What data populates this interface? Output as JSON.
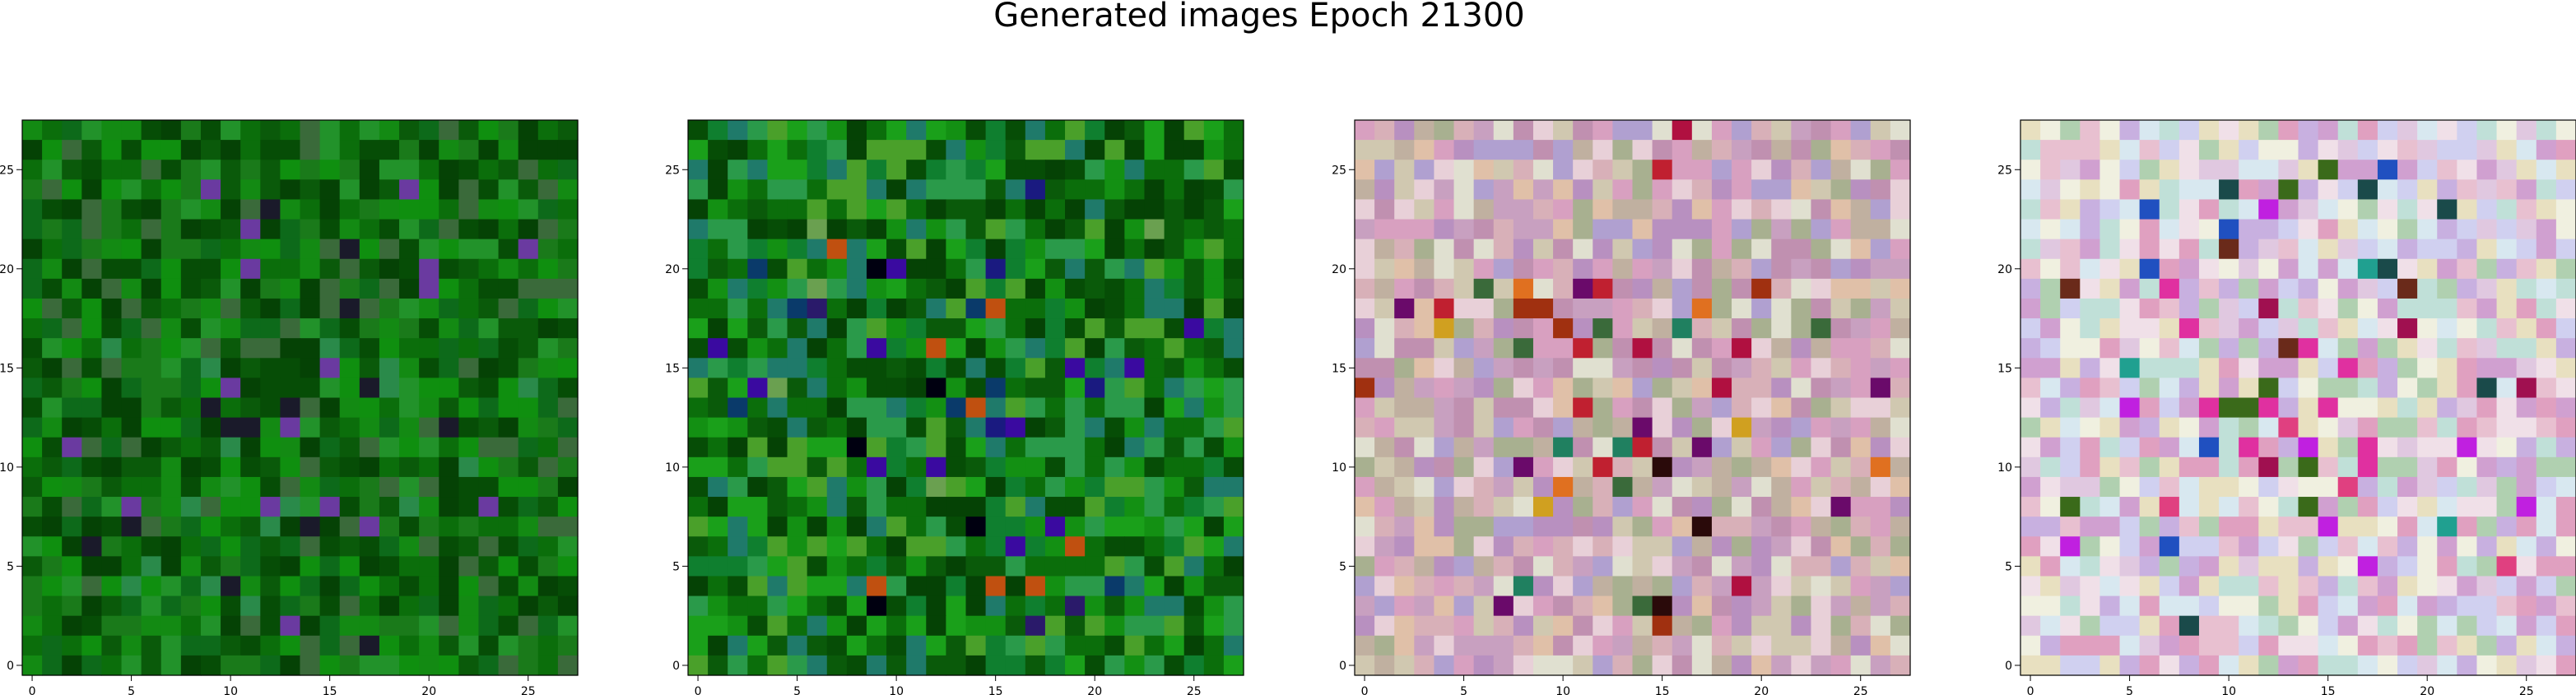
{
  "title": "Generated images Epoch 21300",
  "chart_data": [
    {
      "type": "heatmap",
      "grid_size": 28,
      "xlim": [
        -0.5,
        27.5
      ],
      "ylim": [
        27.5,
        -0.5
      ],
      "xticks": [
        0,
        5,
        10,
        15,
        20,
        25
      ],
      "yticks": [
        0,
        5,
        10,
        15,
        20,
        25
      ],
      "seed": 11,
      "palette": [
        "#0b6e0b",
        "#0a5a0a",
        "#138a13",
        "#064d06",
        "#1a7a1a",
        "#0f8f0f",
        "#054205",
        "#22922a",
        "#0d6a1a",
        "#3a6a3a"
      ],
      "accents": [
        "#6a3aa0",
        "#1a1a2a",
        "#2a8a4a"
      ]
    },
    {
      "type": "heatmap",
      "grid_size": 28,
      "xlim": [
        -0.5,
        27.5
      ],
      "ylim": [
        27.5,
        -0.5
      ],
      "xticks": [
        0,
        5,
        10,
        15,
        20,
        25
      ],
      "yticks": [
        0,
        5,
        10,
        15,
        20,
        25
      ],
      "seed": 23,
      "palette": [
        "#0b6e0b",
        "#0a5a0a",
        "#139013",
        "#064d06",
        "#1aa01a",
        "#0f7f2f",
        "#054205",
        "#2a9a4a",
        "#1f7a6a",
        "#4aa02a"
      ],
      "accents": [
        "#000010",
        "#2a1a6a",
        "#1a1a80",
        "#3a0aa0",
        "#0a3a6a",
        "#c05010",
        "#6aa050"
      ]
    },
    {
      "type": "heatmap",
      "grid_size": 28,
      "xlim": [
        -0.5,
        27.5
      ],
      "ylim": [
        27.5,
        -0.5
      ],
      "xticks": [
        0,
        5,
        10,
        15,
        20,
        25
      ],
      "yticks": [
        0,
        5,
        10,
        15,
        20,
        25
      ],
      "seed": 37,
      "palette": [
        "#d8b0b8",
        "#c8a0c0",
        "#e0c0a8",
        "#b890c0",
        "#d0c8b0",
        "#e8d0d8",
        "#c0b0a0",
        "#d8a0c0",
        "#a8b090",
        "#e0e0d0",
        "#c090b0",
        "#b0a0d0"
      ],
      "accents": [
        "#c02030",
        "#a03010",
        "#d0a020",
        "#6a0a6a",
        "#2a0a0a",
        "#3a6a3a",
        "#e07020",
        "#b01040",
        "#208060"
      ]
    },
    {
      "type": "heatmap",
      "grid_size": 28,
      "xlim": [
        -0.5,
        27.5
      ],
      "ylim": [
        27.5,
        -0.5
      ],
      "xticks": [
        0,
        5,
        10,
        15,
        20,
        25
      ],
      "yticks": [
        0,
        5,
        10,
        15,
        20,
        25
      ],
      "seed": 51,
      "palette": [
        "#e0c8e0",
        "#d0d0f0",
        "#f0e0e8",
        "#c0e0d8",
        "#e8c0d0",
        "#d8e8f0",
        "#f0f0e0",
        "#c8b0e0",
        "#e0a0c0",
        "#b0d0b0",
        "#e8e0c0",
        "#d0a0d0"
      ],
      "accents": [
        "#e030a0",
        "#2050c0",
        "#20a090",
        "#6a2a1a",
        "#a01050",
        "#3a6a1a",
        "#c020e0",
        "#1a4a4a",
        "#e04080"
      ]
    }
  ]
}
